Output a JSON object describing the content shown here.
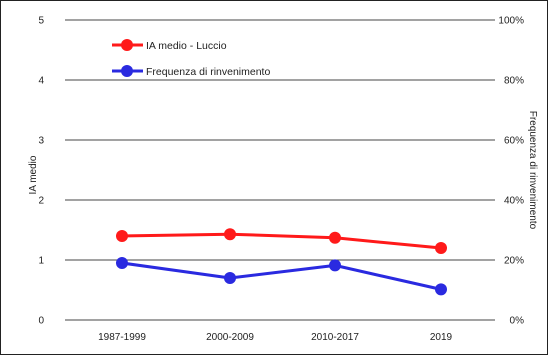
{
  "chart_data": {
    "type": "line",
    "categories": [
      "1987-1999",
      "2000-2009",
      "2010-2017",
      "2019"
    ],
    "series": [
      {
        "name": "IA medio - Luccio",
        "axis": "left",
        "color": "#ff1a1a",
        "values": [
          1.4,
          1.43,
          1.37,
          1.2
        ]
      },
      {
        "name": "Frequenza di rinvenimento",
        "axis": "right",
        "color": "#2a2ae0",
        "values": [
          19,
          14,
          18.2,
          10.2
        ]
      }
    ],
    "ylabel": "IA medio",
    "ylim": [
      0,
      5
    ],
    "yticks": [
      0,
      1,
      2,
      3,
      4,
      5
    ],
    "ylabel_right": "Frequenza di rinvenimento",
    "ylim_right": [
      0,
      100
    ],
    "yticks_right": [
      "0%",
      "20%",
      "40%",
      "60%",
      "80%",
      "100%"
    ],
    "grid": true,
    "legend_position": "top-left"
  }
}
